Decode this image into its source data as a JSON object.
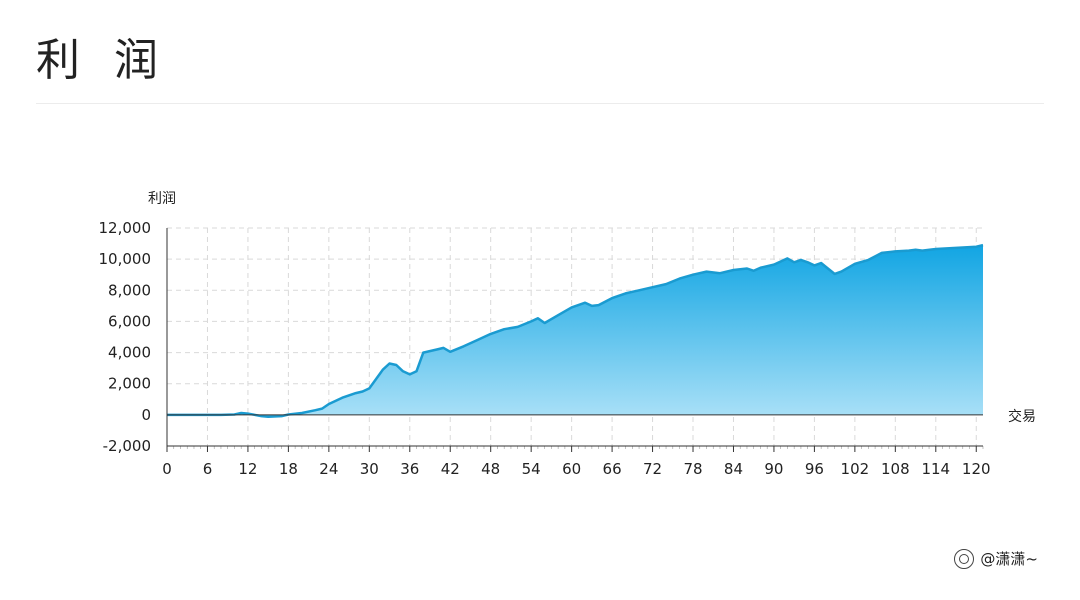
{
  "page": {
    "title": "利 润",
    "watermark": "@潇潇~",
    "watermark_icon": "zhihu-camera-icon"
  },
  "chart_data": {
    "type": "area",
    "title": "利 润",
    "ylabel": "利润",
    "xlabel": "交易",
    "xlim": [
      0,
      121
    ],
    "ylim": [
      -2000,
      12000
    ],
    "y_ticks": [
      -2000,
      0,
      2000,
      4000,
      6000,
      8000,
      10000,
      12000
    ],
    "y_tick_labels": [
      "-2,000",
      "0",
      "2,000",
      "4,000",
      "6,000",
      "8,000",
      "10,000",
      "12,000"
    ],
    "x_ticks": [
      0,
      6,
      12,
      18,
      24,
      30,
      36,
      42,
      48,
      54,
      60,
      66,
      72,
      78,
      84,
      90,
      96,
      102,
      108,
      114,
      120
    ],
    "grid": true,
    "line_color": "#1a9bd1",
    "fill_top_color": "#11a5e3",
    "fill_bottom_color": "#a9e0f7",
    "series": [
      {
        "x": [
          0,
          2,
          4,
          6,
          8,
          10,
          11,
          12,
          14,
          15,
          17,
          18,
          20,
          22,
          23,
          24,
          26,
          28,
          29,
          30,
          31,
          32,
          33,
          34,
          35,
          36,
          37,
          38,
          40,
          41,
          42,
          44,
          46,
          48,
          50,
          52,
          54,
          55,
          56,
          58,
          60,
          62,
          63,
          64,
          66,
          68,
          70,
          72,
          74,
          76,
          78,
          80,
          82,
          84,
          86,
          87,
          88,
          90,
          91,
          92,
          93,
          94,
          95,
          96,
          97,
          98,
          99,
          100,
          102,
          104,
          106,
          108,
          110,
          111,
          112,
          114,
          116,
          118,
          120,
          121
        ],
        "y": [
          0,
          0,
          0,
          0,
          0,
          20,
          120,
          80,
          -80,
          -120,
          -80,
          20,
          120,
          300,
          400,
          700,
          1100,
          1400,
          1500,
          1700,
          2300,
          2900,
          3300,
          3200,
          2800,
          2600,
          2800,
          4000,
          4200,
          4300,
          4050,
          4400,
          4800,
          5200,
          5500,
          5650,
          6000,
          6200,
          5900,
          6400,
          6900,
          7200,
          7000,
          7050,
          7500,
          7800,
          8000,
          8200,
          8400,
          8750,
          9000,
          9200,
          9100,
          9300,
          9400,
          9250,
          9450,
          9650,
          9850,
          10050,
          9800,
          9950,
          9800,
          9600,
          9750,
          9400,
          9050,
          9200,
          9700,
          9950,
          10400,
          10500,
          10550,
          10600,
          10550,
          10650,
          10700,
          10750,
          10800,
          10900
        ]
      }
    ]
  }
}
